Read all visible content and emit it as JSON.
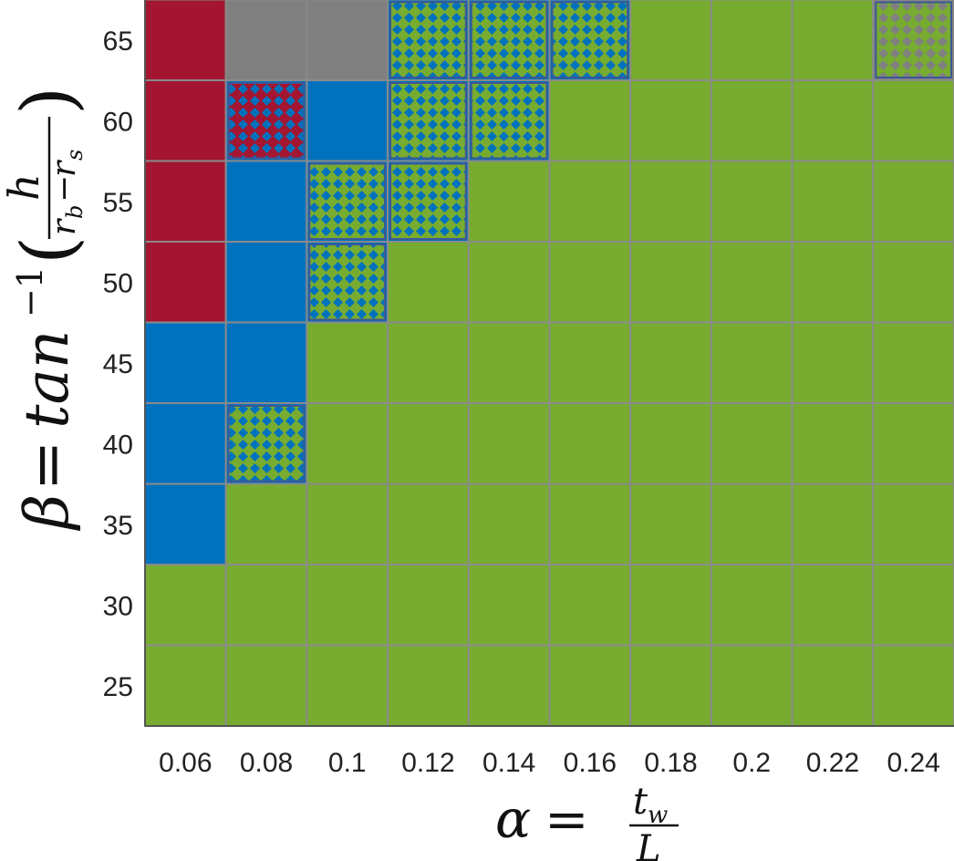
{
  "chart_data": {
    "type": "heatmap",
    "x_values": [
      "0.06",
      "0.08",
      "0.1",
      "0.12",
      "0.14",
      "0.16",
      "0.18",
      "0.2",
      "0.22",
      "0.24"
    ],
    "y_values": [
      "25",
      "30",
      "35",
      "40",
      "45",
      "50",
      "55",
      "60",
      "65"
    ],
    "xlabel": {
      "lhs": "α",
      "eq": "=",
      "num": "t",
      "num_sub": "w",
      "den": "L"
    },
    "ylabel": {
      "lhs": "β",
      "eq": "=",
      "fn": "tan",
      "sup": "−1",
      "num": "h",
      "den_a": "r",
      "den_a_sub": "b",
      "den_minus": "−",
      "den_b": "r",
      "den_b_sub": "s"
    },
    "colors": {
      "red": "#a31530",
      "blue": "#0072bd",
      "green": "#77ac30",
      "gray": "#808080",
      "grid": "#8a8a8a",
      "outline": "#3d5896"
    },
    "legend": "none",
    "grid": true,
    "rows": [
      {
        "y": "65",
        "cells": [
          {
            "c": "red"
          },
          {
            "c": "gray"
          },
          {
            "c": "gray"
          },
          {
            "c": "blue",
            "pat": "green"
          },
          {
            "c": "blue",
            "pat": "green"
          },
          {
            "c": "blue",
            "pat": "green"
          },
          {
            "c": "green"
          },
          {
            "c": "green"
          },
          {
            "c": "green"
          },
          {
            "c": "gray",
            "pat": "green"
          }
        ]
      },
      {
        "y": "60",
        "cells": [
          {
            "c": "red"
          },
          {
            "c": "blue",
            "pat": "red"
          },
          {
            "c": "blue"
          },
          {
            "c": "blue",
            "pat": "green"
          },
          {
            "c": "blue",
            "pat": "green"
          },
          {
            "c": "green"
          },
          {
            "c": "green"
          },
          {
            "c": "green"
          },
          {
            "c": "green"
          },
          {
            "c": "green"
          }
        ]
      },
      {
        "y": "55",
        "cells": [
          {
            "c": "red"
          },
          {
            "c": "blue"
          },
          {
            "c": "blue",
            "pat": "green"
          },
          {
            "c": "blue",
            "pat": "green"
          },
          {
            "c": "green"
          },
          {
            "c": "green"
          },
          {
            "c": "green"
          },
          {
            "c": "green"
          },
          {
            "c": "green"
          },
          {
            "c": "green"
          }
        ]
      },
      {
        "y": "50",
        "cells": [
          {
            "c": "red"
          },
          {
            "c": "blue"
          },
          {
            "c": "blue",
            "pat": "green"
          },
          {
            "c": "green"
          },
          {
            "c": "green"
          },
          {
            "c": "green"
          },
          {
            "c": "green"
          },
          {
            "c": "green"
          },
          {
            "c": "green"
          },
          {
            "c": "green"
          }
        ]
      },
      {
        "y": "45",
        "cells": [
          {
            "c": "blue"
          },
          {
            "c": "blue"
          },
          {
            "c": "green"
          },
          {
            "c": "green"
          },
          {
            "c": "green"
          },
          {
            "c": "green"
          },
          {
            "c": "green"
          },
          {
            "c": "green"
          },
          {
            "c": "green"
          },
          {
            "c": "green"
          }
        ]
      },
      {
        "y": "40",
        "cells": [
          {
            "c": "blue"
          },
          {
            "c": "blue",
            "pat": "green"
          },
          {
            "c": "green"
          },
          {
            "c": "green"
          },
          {
            "c": "green"
          },
          {
            "c": "green"
          },
          {
            "c": "green"
          },
          {
            "c": "green"
          },
          {
            "c": "green"
          },
          {
            "c": "green"
          }
        ]
      },
      {
        "y": "35",
        "cells": [
          {
            "c": "blue"
          },
          {
            "c": "green"
          },
          {
            "c": "green"
          },
          {
            "c": "green"
          },
          {
            "c": "green"
          },
          {
            "c": "green"
          },
          {
            "c": "green"
          },
          {
            "c": "green"
          },
          {
            "c": "green"
          },
          {
            "c": "green"
          }
        ]
      },
      {
        "y": "30",
        "cells": [
          {
            "c": "green"
          },
          {
            "c": "green"
          },
          {
            "c": "green"
          },
          {
            "c": "green"
          },
          {
            "c": "green"
          },
          {
            "c": "green"
          },
          {
            "c": "green"
          },
          {
            "c": "green"
          },
          {
            "c": "green"
          },
          {
            "c": "green"
          }
        ]
      },
      {
        "y": "25",
        "cells": [
          {
            "c": "green"
          },
          {
            "c": "green"
          },
          {
            "c": "green"
          },
          {
            "c": "green"
          },
          {
            "c": "green"
          },
          {
            "c": "green"
          },
          {
            "c": "green"
          },
          {
            "c": "green"
          },
          {
            "c": "green"
          },
          {
            "c": "green"
          }
        ]
      }
    ]
  }
}
